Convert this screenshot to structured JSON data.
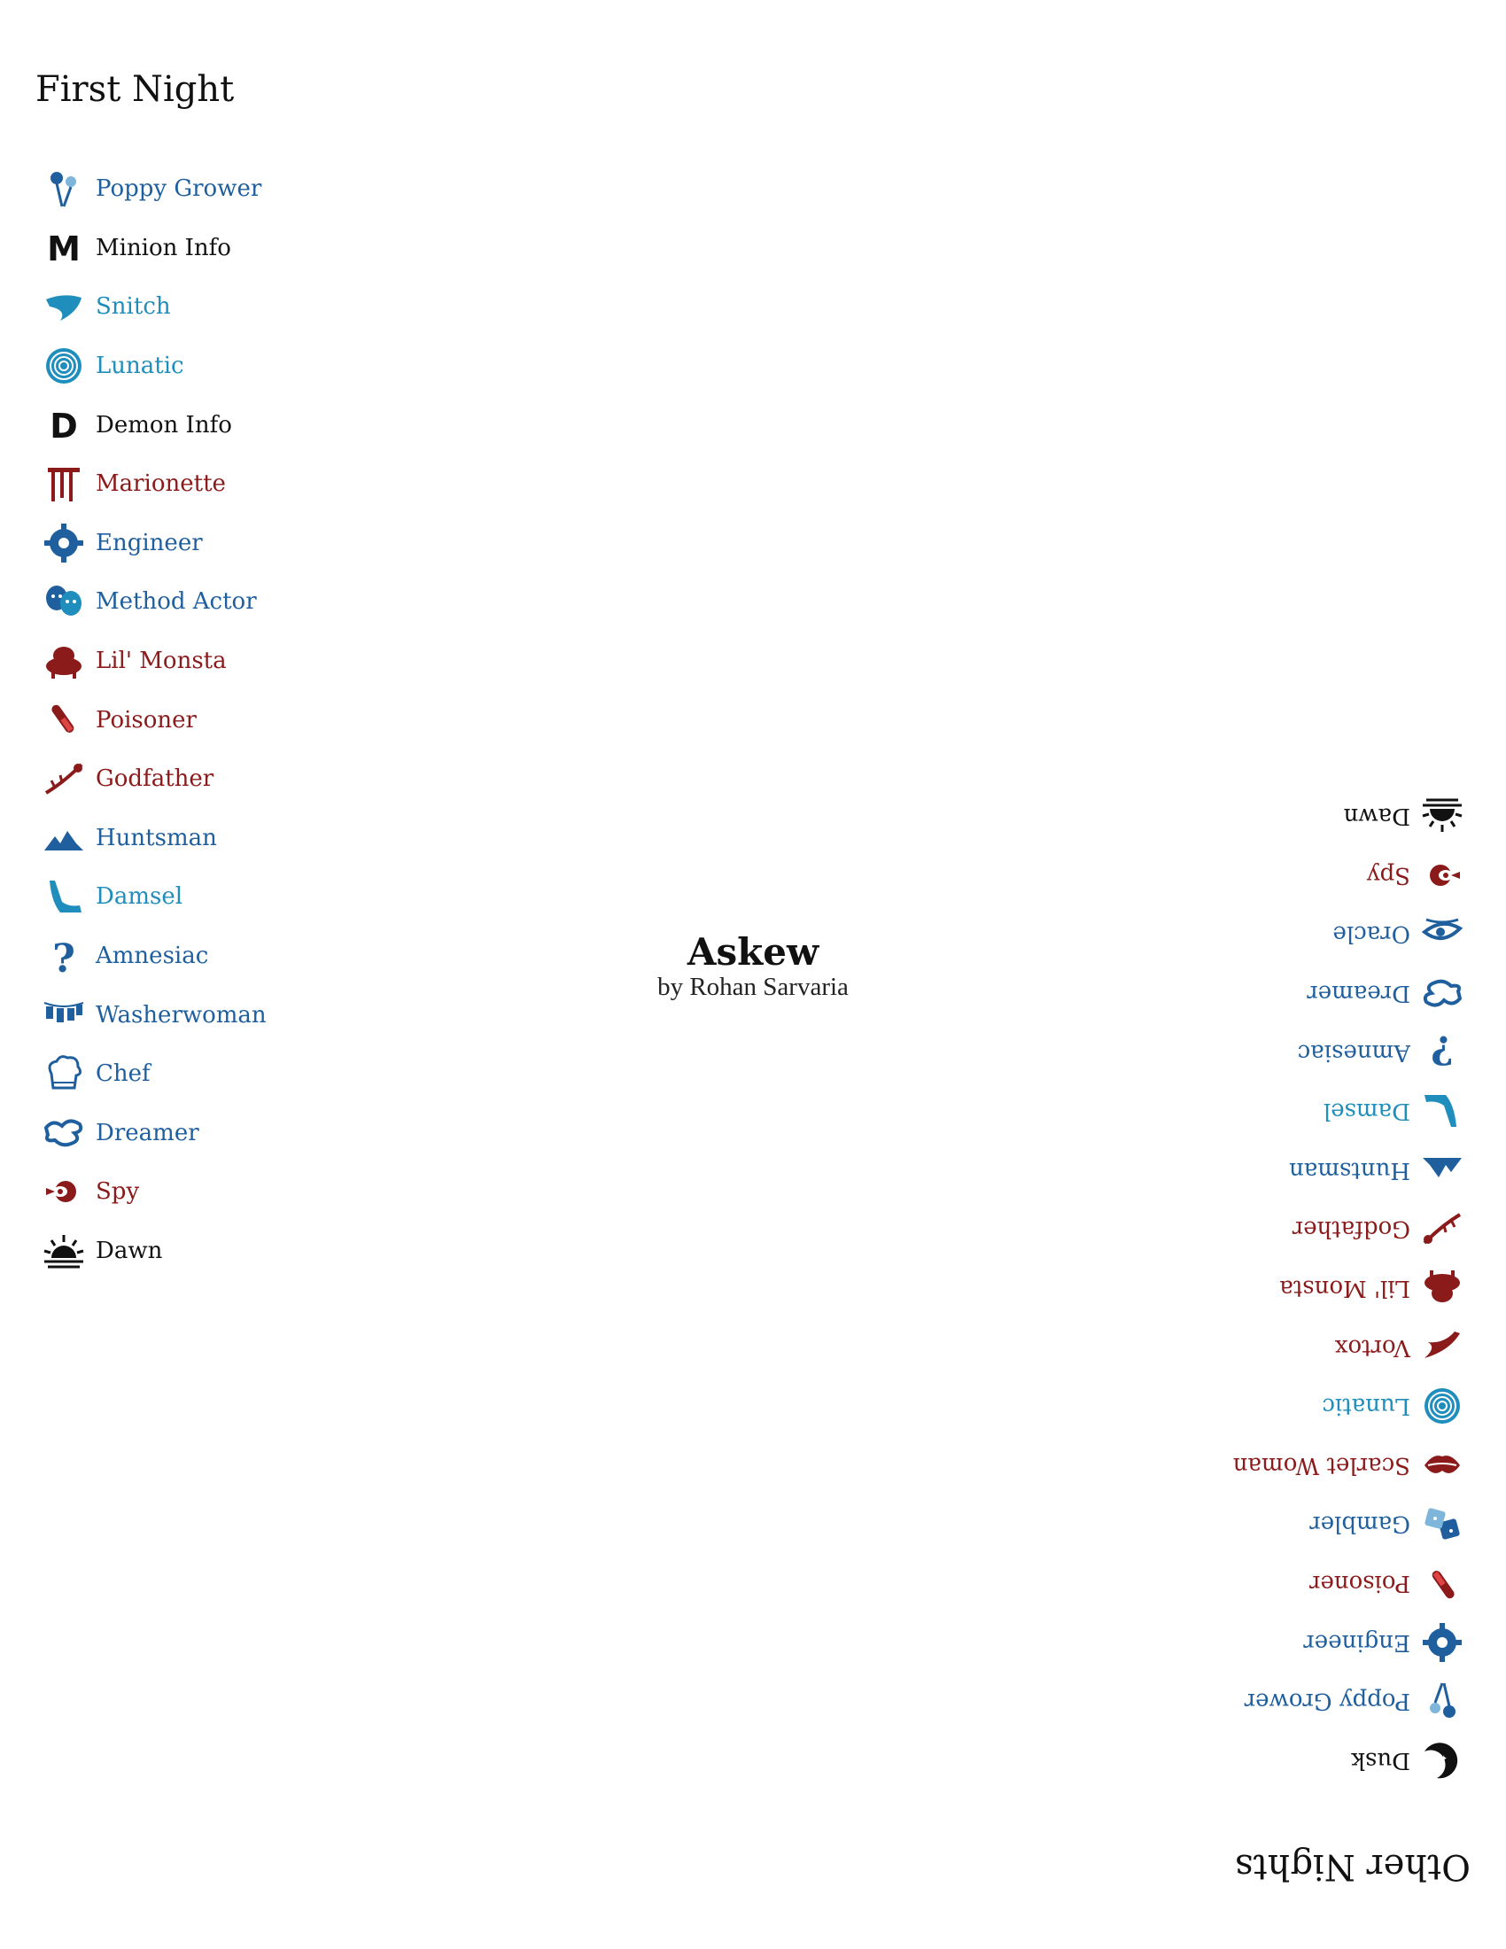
{
  "script": {
    "title": "Askew",
    "author": "by Rohan Sarvaria"
  },
  "first_night": {
    "title": "First Night",
    "items": [
      {
        "label": "Poppy Grower",
        "icon": "poppy-grower-icon",
        "team": "town"
      },
      {
        "label": "Minion Info",
        "icon": "minion-info-icon",
        "team": "info"
      },
      {
        "label": "Snitch",
        "icon": "snitch-icon",
        "team": "outsider"
      },
      {
        "label": "Lunatic",
        "icon": "lunatic-icon",
        "team": "outsider"
      },
      {
        "label": "Demon Info",
        "icon": "demon-info-icon",
        "team": "info"
      },
      {
        "label": "Marionette",
        "icon": "marionette-icon",
        "team": "evil"
      },
      {
        "label": "Engineer",
        "icon": "engineer-icon",
        "team": "town"
      },
      {
        "label": "Method Actor",
        "icon": "method-actor-icon",
        "team": "town"
      },
      {
        "label": "Lil' Monsta",
        "icon": "lil-monsta-icon",
        "team": "evil"
      },
      {
        "label": "Poisoner",
        "icon": "poisoner-icon",
        "team": "evil"
      },
      {
        "label": "Godfather",
        "icon": "godfather-icon",
        "team": "evil"
      },
      {
        "label": "Huntsman",
        "icon": "huntsman-icon",
        "team": "town"
      },
      {
        "label": "Damsel",
        "icon": "damsel-icon",
        "team": "outsider"
      },
      {
        "label": "Amnesiac",
        "icon": "amnesiac-icon",
        "team": "town"
      },
      {
        "label": "Washerwoman",
        "icon": "washerwoman-icon",
        "team": "town"
      },
      {
        "label": "Chef",
        "icon": "chef-icon",
        "team": "town"
      },
      {
        "label": "Dreamer",
        "icon": "dreamer-icon",
        "team": "town"
      },
      {
        "label": "Spy",
        "icon": "spy-icon",
        "team": "evil"
      },
      {
        "label": "Dawn",
        "icon": "dawn-icon",
        "team": "info"
      }
    ]
  },
  "other_nights": {
    "title": "Other Nights",
    "items": [
      {
        "label": "Dusk",
        "icon": "dusk-icon",
        "team": "info"
      },
      {
        "label": "Poppy Grower",
        "icon": "poppy-grower-icon",
        "team": "town"
      },
      {
        "label": "Engineer",
        "icon": "engineer-icon",
        "team": "town"
      },
      {
        "label": "Poisoner",
        "icon": "poisoner-icon",
        "team": "evil"
      },
      {
        "label": "Gambler",
        "icon": "gambler-icon",
        "team": "town"
      },
      {
        "label": "Scarlet Woman",
        "icon": "scarlet-woman-icon",
        "team": "evil"
      },
      {
        "label": "Lunatic",
        "icon": "lunatic-icon",
        "team": "outsider"
      },
      {
        "label": "Vortox",
        "icon": "vortox-icon",
        "team": "evil"
      },
      {
        "label": "Lil' Monsta",
        "icon": "lil-monsta-icon",
        "team": "evil"
      },
      {
        "label": "Godfather",
        "icon": "godfather-icon",
        "team": "evil"
      },
      {
        "label": "Huntsman",
        "icon": "huntsman-icon",
        "team": "town"
      },
      {
        "label": "Damsel",
        "icon": "damsel-icon",
        "team": "outsider"
      },
      {
        "label": "Amnesiac",
        "icon": "amnesiac-icon",
        "team": "town"
      },
      {
        "label": "Dreamer",
        "icon": "dreamer-icon",
        "team": "town"
      },
      {
        "label": "Oracle",
        "icon": "oracle-icon",
        "team": "town"
      },
      {
        "label": "Spy",
        "icon": "spy-icon",
        "team": "evil"
      },
      {
        "label": "Dawn",
        "icon": "dawn-icon",
        "team": "info"
      }
    ]
  },
  "colors": {
    "town": "#1f5f9e",
    "outsider": "#1f8ebd",
    "evil": "#8b1a1a",
    "info": "#111111"
  }
}
